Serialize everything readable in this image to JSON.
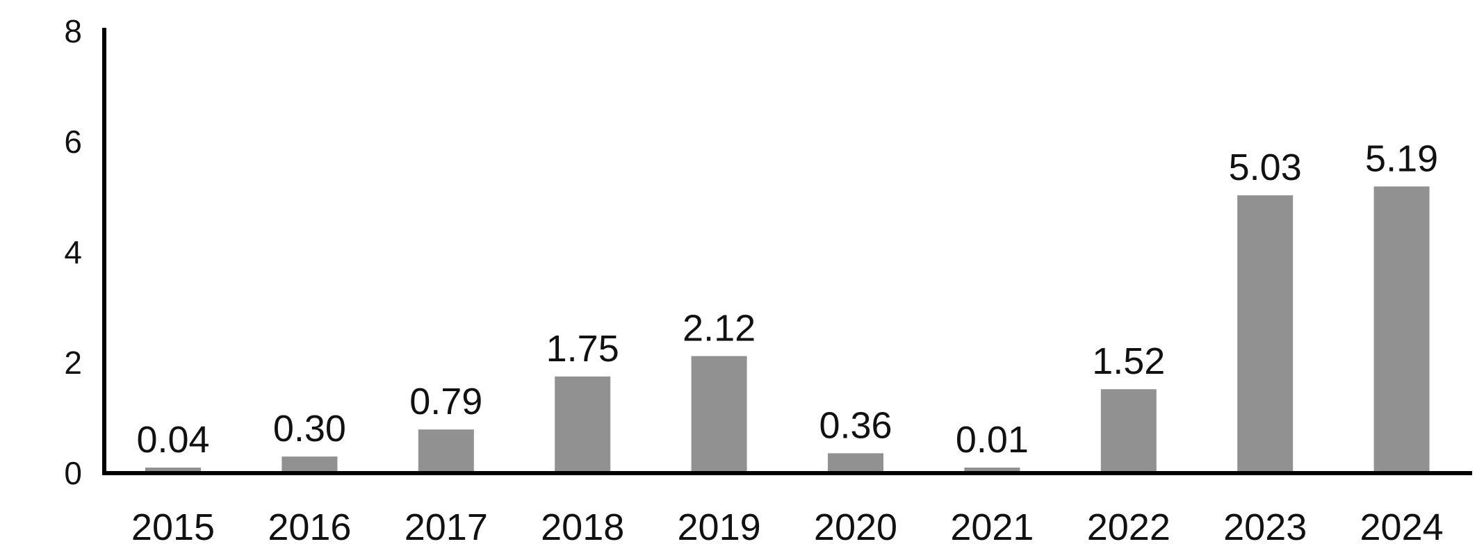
{
  "chart_data": {
    "type": "bar",
    "categories": [
      "2015",
      "2016",
      "2017",
      "2018",
      "2019",
      "2020",
      "2021",
      "2022",
      "2023",
      "2024"
    ],
    "values": [
      0.04,
      0.3,
      0.79,
      1.75,
      2.12,
      0.36,
      0.01,
      1.52,
      5.03,
      5.19
    ],
    "value_labels": [
      "0.04",
      "0.30",
      "0.79",
      "1.75",
      "2.12",
      "0.36",
      "0.01",
      "1.52",
      "5.03",
      "5.19"
    ],
    "title": "",
    "xlabel": "",
    "ylabel": "",
    "ylim": [
      0,
      8
    ],
    "yticks": [
      0,
      2,
      4,
      6,
      8
    ],
    "grid": false,
    "legend": "none",
    "bar_color": "#919191",
    "axis_color": "#000000"
  }
}
